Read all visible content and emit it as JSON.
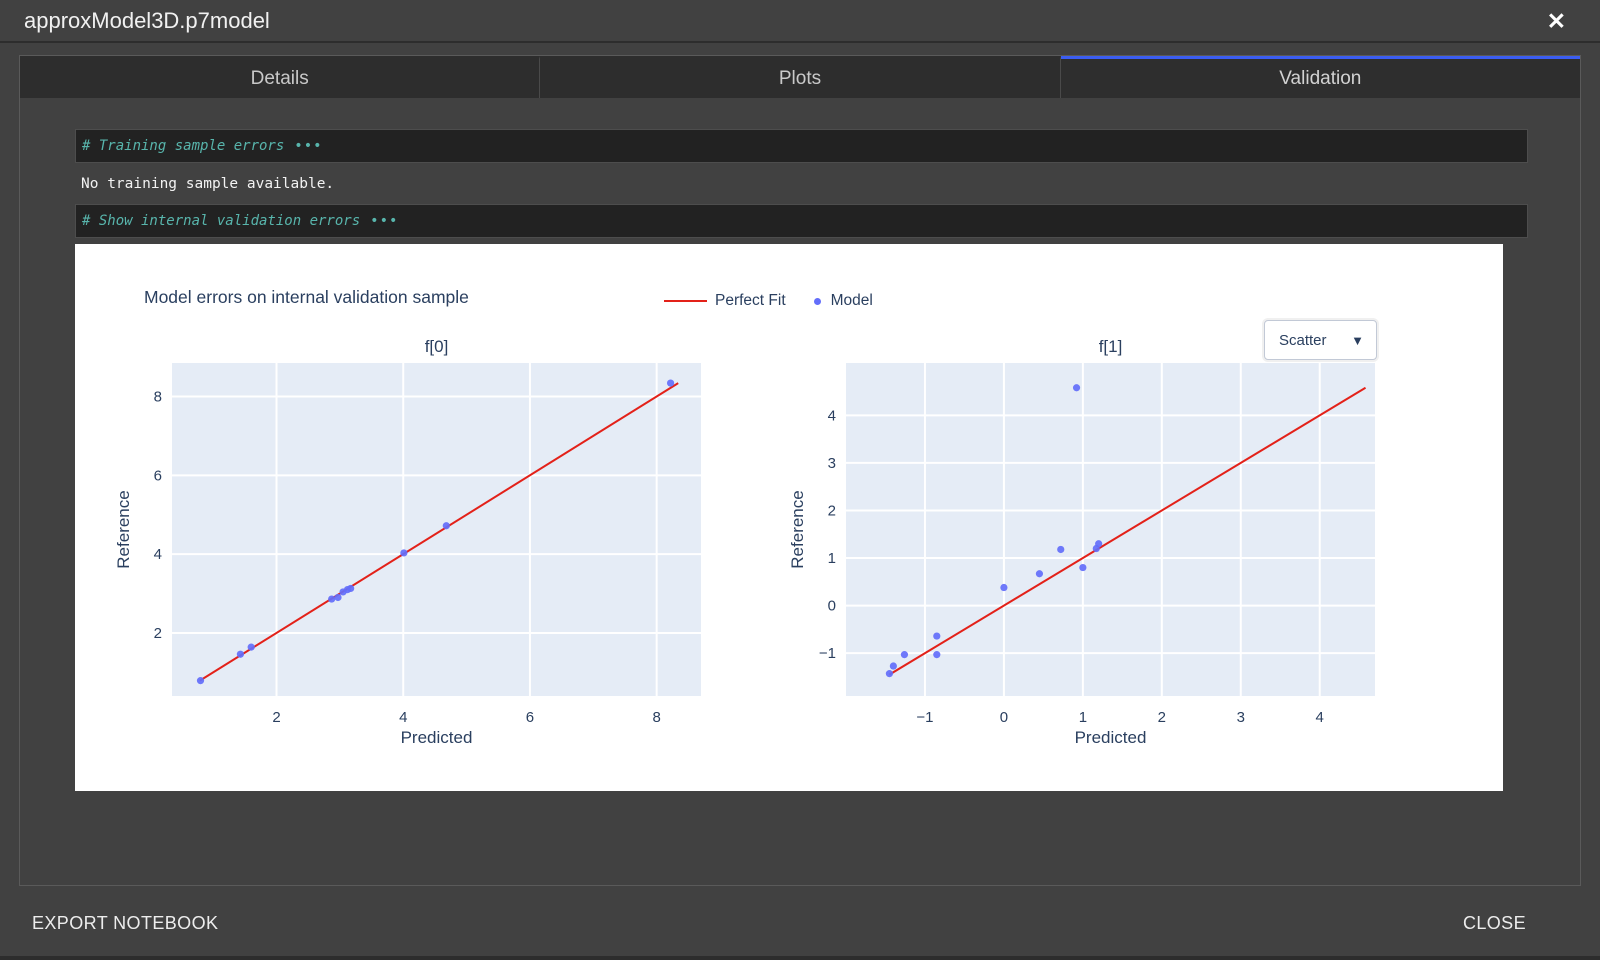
{
  "window": {
    "title": "approxModel3D.p7model",
    "close_glyph": "✕"
  },
  "tabs": [
    {
      "label": "Details",
      "active": false
    },
    {
      "label": "Plots",
      "active": false
    },
    {
      "label": "Validation",
      "active": true
    }
  ],
  "cells": {
    "training_header": "# Training sample errors",
    "training_ellipsis": "•••",
    "training_output": "No training sample available.",
    "validation_header": "# Show internal validation errors",
    "validation_ellipsis": "•••"
  },
  "chart_panel": {
    "title": "Model errors on internal validation sample",
    "legend": [
      {
        "label": "Perfect Fit",
        "type": "line",
        "color": "#e32119"
      },
      {
        "label": "Model",
        "type": "marker",
        "color": "#636efa"
      }
    ],
    "plot_type_dropdown": {
      "value": "Scatter",
      "arrow": "▼"
    }
  },
  "footer": {
    "export_label": "EXPORT NOTEBOOK",
    "close_label": "CLOSE"
  },
  "colors": {
    "plot_bg": "#e5ecf6",
    "grid": "#ffffff",
    "perfect_fit_line": "#e32119",
    "marker": "#636efa",
    "axis_text": "#2a3f5f",
    "active_tab_accent": "#3b5df2",
    "code_comment": "#58b5ac"
  },
  "chart_data": [
    {
      "type": "scatter",
      "title": "f[0]",
      "xlabel": "Predicted",
      "ylabel": "Reference",
      "xlim": [
        0.35,
        8.7
      ],
      "ylim": [
        0.4,
        8.85
      ],
      "xticks": [
        2,
        4,
        6,
        8
      ],
      "yticks": [
        2,
        4,
        6,
        8
      ],
      "grid": true,
      "perfect_fit_line": {
        "x": [
          0.79,
          8.34
        ],
        "y": [
          0.79,
          8.34
        ]
      },
      "points": [
        [
          0.8,
          0.79
        ],
        [
          1.43,
          1.46
        ],
        [
          1.6,
          1.64
        ],
        [
          2.87,
          2.86
        ],
        [
          2.97,
          2.9
        ],
        [
          3.05,
          3.04
        ],
        [
          3.12,
          3.1
        ],
        [
          3.17,
          3.13
        ],
        [
          4.01,
          4.03
        ],
        [
          4.68,
          4.72
        ],
        [
          8.22,
          8.34
        ]
      ]
    },
    {
      "type": "scatter",
      "title": "f[1]",
      "xlabel": "Predicted",
      "ylabel": "Reference",
      "xlim": [
        -2.0,
        4.7
      ],
      "ylim": [
        -1.9,
        5.1
      ],
      "xticks": [
        -1,
        0,
        1,
        2,
        3,
        4
      ],
      "yticks": [
        -1,
        0,
        1,
        2,
        3,
        4
      ],
      "grid": true,
      "perfect_fit_line": {
        "x": [
          -1.45,
          4.58
        ],
        "y": [
          -1.45,
          4.58
        ]
      },
      "points": [
        [
          -1.45,
          -1.43
        ],
        [
          -1.4,
          -1.27
        ],
        [
          -1.26,
          -1.03
        ],
        [
          -0.85,
          -1.03
        ],
        [
          -0.85,
          -0.64
        ],
        [
          0.0,
          0.38
        ],
        [
          0.45,
          0.67
        ],
        [
          0.72,
          1.18
        ],
        [
          1.0,
          0.8
        ],
        [
          1.17,
          1.2
        ],
        [
          1.2,
          1.3
        ],
        [
          0.92,
          4.58
        ]
      ]
    }
  ]
}
